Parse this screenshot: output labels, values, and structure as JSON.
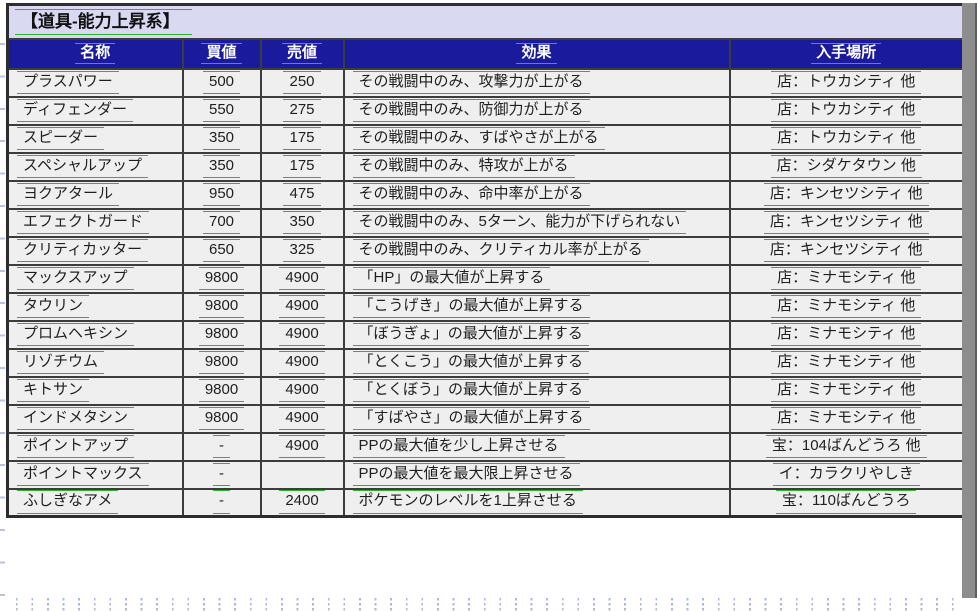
{
  "page": {
    "title": "【道具-能力上昇系】"
  },
  "colors": {
    "header_bg": "#1a1a9c",
    "title_bg": "#d9d9f2",
    "link_green": "#2eb42e",
    "row_bg": "#efefef"
  },
  "table": {
    "headers": [
      "名称",
      "買値",
      "売値",
      "効果",
      "入手場所"
    ],
    "rows": [
      {
        "name": "プラスパワー",
        "buy": "500",
        "sell": "250",
        "effect": "その戦闘中のみ、攻撃力が上がる",
        "location": "店：トウカシティ 他"
      },
      {
        "name": "ディフェンダー",
        "buy": "550",
        "sell": "275",
        "effect": "その戦闘中のみ、防御力が上がる",
        "location": "店：トウカシティ 他"
      },
      {
        "name": "スピーダー",
        "buy": "350",
        "sell": "175",
        "effect": "その戦闘中のみ、すばやさが上がる",
        "location": "店：トウカシティ 他"
      },
      {
        "name": "スペシャルアップ",
        "buy": "350",
        "sell": "175",
        "effect": "その戦闘中のみ、特攻が上がる",
        "location": "店：シダケタウン 他"
      },
      {
        "name": "ヨクアタール",
        "buy": "950",
        "sell": "475",
        "effect": "その戦闘中のみ、命中率が上がる",
        "location": "店：キンセツシティ 他"
      },
      {
        "name": "エフェクトガード",
        "buy": "700",
        "sell": "350",
        "effect": "その戦闘中のみ、5ターン、能力が下げられない",
        "location": "店：キンセツシティ 他"
      },
      {
        "name": "クリティカッター",
        "buy": "650",
        "sell": "325",
        "effect": "その戦闘中のみ、クリティカル率が上がる",
        "location": "店：キンセツシティ 他"
      },
      {
        "name": "マックスアップ",
        "buy": "9800",
        "sell": "4900",
        "effect": "「HP」の最大値が上昇する",
        "location": "店：ミナモシティ 他"
      },
      {
        "name": "タウリン",
        "buy": "9800",
        "sell": "4900",
        "effect": "「こうげき」の最大値が上昇する",
        "location": "店：ミナモシティ 他"
      },
      {
        "name": "プロムヘキシン",
        "buy": "9800",
        "sell": "4900",
        "effect": "「ぼうぎょ」の最大値が上昇する",
        "location": "店：ミナモシティ 他"
      },
      {
        "name": "リゾチウム",
        "buy": "9800",
        "sell": "4900",
        "effect": "「とくこう」の最大値が上昇する",
        "location": "店：ミナモシティ 他"
      },
      {
        "name": "キトサン",
        "buy": "9800",
        "sell": "4900",
        "effect": "「とくぼう」の最大値が上昇する",
        "location": "店：ミナモシティ 他"
      },
      {
        "name": "インドメタシン",
        "buy": "9800",
        "sell": "4900",
        "effect": "「すばやさ」の最大値が上昇する",
        "location": "店：ミナモシティ 他"
      },
      {
        "name": "ポイントアップ",
        "buy": "-",
        "sell": "4900",
        "effect": "PPの最大値を少し上昇させる",
        "location": "宝：104ばんどうろ 他"
      },
      {
        "name": "ポイントマックス",
        "buy": "-",
        "sell": "",
        "effect": "PPの最大値を最大限上昇させる",
        "location": "イ：カラクリやしき"
      },
      {
        "name": "ふしぎなアメ",
        "buy": "-",
        "sell": "2400",
        "effect": "ポケモンのレベルを1上昇させる",
        "location": "宝：110ばんどうろ"
      }
    ]
  }
}
